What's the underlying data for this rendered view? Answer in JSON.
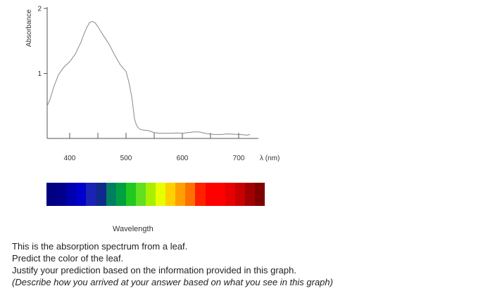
{
  "chart_data": {
    "type": "line",
    "ylabel": "Absorbance",
    "xlabel": "λ (nm)",
    "x_ticks": [
      400,
      500,
      600,
      700
    ],
    "y_ticks": [
      1,
      2
    ],
    "xlim": [
      360,
      735
    ],
    "ylim": [
      0,
      2
    ],
    "grid": false,
    "series": [
      {
        "x": [
          360,
          365,
          372,
          380,
          390,
          400,
          410,
          420,
          425,
          430,
          435,
          440,
          445,
          450,
          455,
          460,
          470,
          480,
          490,
          500,
          505,
          510,
          513,
          515,
          518,
          520,
          525,
          530,
          540,
          550,
          560,
          570,
          580,
          590,
          600,
          610,
          620,
          630,
          640,
          650,
          660,
          670,
          680,
          690,
          700,
          710,
          715,
          720
        ],
        "y": [
          0.5,
          0.6,
          0.8,
          0.98,
          1.1,
          1.18,
          1.3,
          1.48,
          1.6,
          1.7,
          1.78,
          1.8,
          1.78,
          1.72,
          1.65,
          1.58,
          1.45,
          1.28,
          1.13,
          1.03,
          0.87,
          0.65,
          0.45,
          0.3,
          0.22,
          0.18,
          0.14,
          0.13,
          0.12,
          0.09,
          0.08,
          0.08,
          0.08,
          0.085,
          0.08,
          0.09,
          0.1,
          0.1,
          0.08,
          0.065,
          0.06,
          0.06,
          0.07,
          0.065,
          0.06,
          0.055,
          0.05,
          0.06
        ]
      }
    ]
  },
  "spectrum_colors": [
    "#000080",
    "#00008b",
    "#0000ad",
    "#0000cd",
    "#1a23b4",
    "#0f2a8c",
    "#008060",
    "#00a040",
    "#20c820",
    "#60e020",
    "#a8f000",
    "#e8ff00",
    "#ffd000",
    "#ffa000",
    "#ff7000",
    "#ff2000",
    "#ff0000",
    "#ff0000",
    "#e80000",
    "#c80000",
    "#a00000",
    "#800000"
  ],
  "spectrum_label": "Wavelength",
  "question": {
    "line1": "This is the absorption spectrum from a leaf.",
    "line2": "Predict the color of the leaf.",
    "line3": "Justify your prediction based on the information provided in this graph.",
    "line4": "(Describe how you arrived at your answer based on what you see in this graph)"
  }
}
